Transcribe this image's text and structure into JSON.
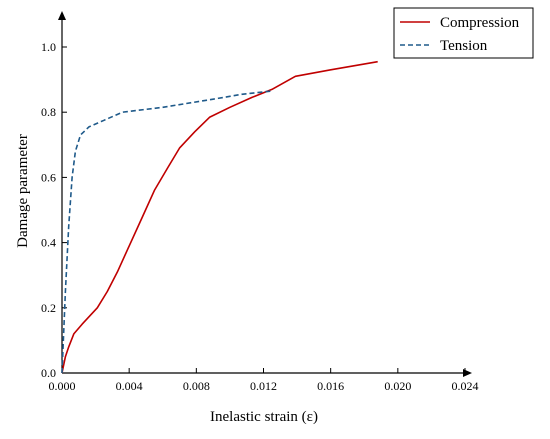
{
  "chart_data": {
    "type": "line",
    "title": "",
    "xlabel": "Inelastic strain (ε)",
    "ylabel": "Damage parameter",
    "xlim": [
      0,
      0.024
    ],
    "ylim": [
      0,
      1.0
    ],
    "x_ticks": [
      "0.000",
      "0.004",
      "0.008",
      "0.012",
      "0.016",
      "0.020",
      "0.024"
    ],
    "y_ticks": [
      "0.0",
      "0.2",
      "0.4",
      "0.6",
      "0.8",
      "1.0"
    ],
    "grid": false,
    "legend_position": "top-right",
    "series": [
      {
        "name": "Compression",
        "color": "#c00000",
        "style": "solid",
        "points": [
          [
            0,
            0
          ],
          [
            0.0002,
            0.05
          ],
          [
            0.0004,
            0.08
          ],
          [
            0.0007,
            0.12
          ],
          [
            0.0012,
            0.15
          ],
          [
            0.0021,
            0.2
          ],
          [
            0.0027,
            0.25
          ],
          [
            0.0033,
            0.31
          ],
          [
            0.004,
            0.39
          ],
          [
            0.0048,
            0.48
          ],
          [
            0.0055,
            0.56
          ],
          [
            0.0063,
            0.63
          ],
          [
            0.007,
            0.69
          ],
          [
            0.0079,
            0.74
          ],
          [
            0.0088,
            0.785
          ],
          [
            0.01,
            0.815
          ],
          [
            0.0113,
            0.845
          ],
          [
            0.0125,
            0.87
          ],
          [
            0.0139,
            0.91
          ],
          [
            0.016,
            0.93
          ],
          [
            0.0188,
            0.955
          ]
        ]
      },
      {
        "name": "Tension",
        "color": "#1f5a8a",
        "style": "dashed",
        "points": [
          [
            0,
            0
          ],
          [
            0.0002,
            0.25
          ],
          [
            0.0004,
            0.45
          ],
          [
            0.0006,
            0.6
          ],
          [
            0.0008,
            0.68
          ],
          [
            0.0011,
            0.73
          ],
          [
            0.0016,
            0.755
          ],
          [
            0.0025,
            0.775
          ],
          [
            0.0036,
            0.8
          ],
          [
            0.006,
            0.815
          ],
          [
            0.009,
            0.84
          ],
          [
            0.0107,
            0.855
          ],
          [
            0.0125,
            0.865
          ]
        ]
      }
    ]
  }
}
